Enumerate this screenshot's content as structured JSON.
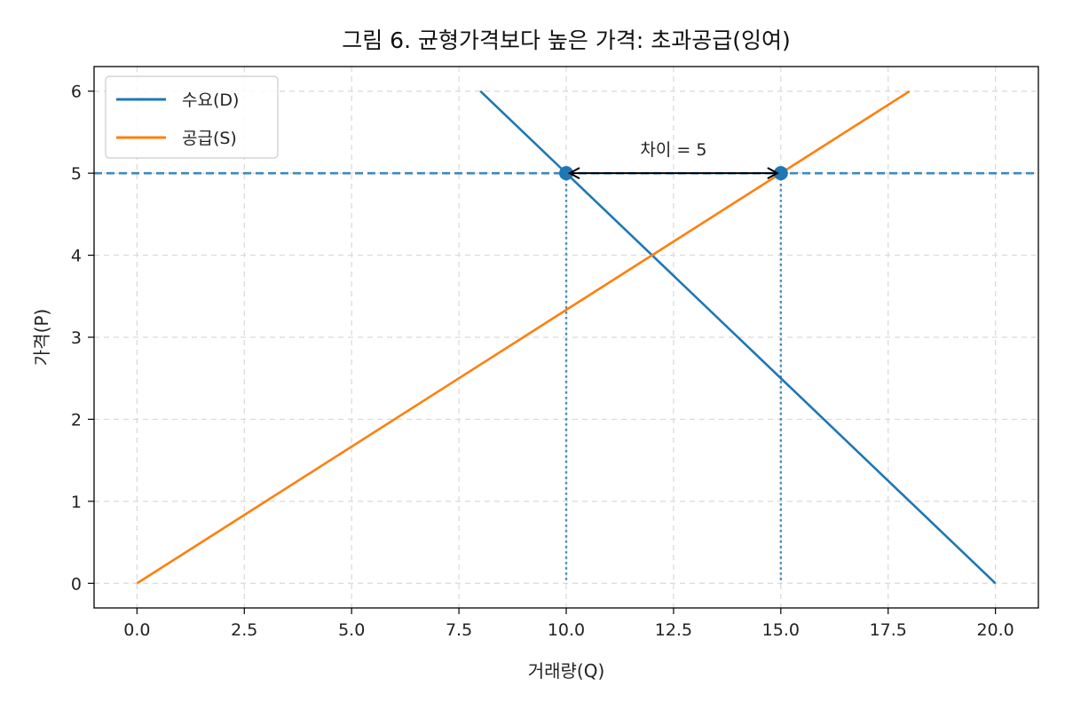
{
  "chart_data": {
    "type": "line",
    "title": "그림 6. 균형가격보다 높은 가격: 초과공급(잉여)",
    "xlabel": "거래량(Q)",
    "ylabel": "가격(P)",
    "xlim": [
      -1,
      21
    ],
    "ylim": [
      -0.3,
      6.3
    ],
    "xticks": [
      0,
      2.5,
      5,
      7.5,
      10,
      12.5,
      15,
      17.5,
      20
    ],
    "xtick_labels": [
      "0.0",
      "2.5",
      "5.0",
      "7.5",
      "10.0",
      "12.5",
      "15.0",
      "17.5",
      "20.0"
    ],
    "yticks": [
      0,
      1,
      2,
      3,
      4,
      5,
      6
    ],
    "ytick_labels": [
      "0",
      "1",
      "2",
      "3",
      "4",
      "5",
      "6"
    ],
    "grid": true,
    "legend_position": "top-left",
    "series": [
      {
        "name": "수요(D)",
        "color": "#1f77b4",
        "x": [
          8,
          20
        ],
        "y": [
          6,
          0
        ]
      },
      {
        "name": "공급(S)",
        "color": "#ff7f0e",
        "x": [
          0,
          18
        ],
        "y": [
          0,
          6
        ]
      }
    ],
    "price_line": {
      "y": 5,
      "color": "#1f77b4"
    },
    "points": [
      {
        "x": 10,
        "y": 5,
        "color": "#1f77b4"
      },
      {
        "x": 15,
        "y": 5,
        "color": "#1f77b4"
      }
    ],
    "annotation": {
      "text": "차이 = 5",
      "x_from": 10,
      "x_to": 15,
      "y": 5
    }
  }
}
